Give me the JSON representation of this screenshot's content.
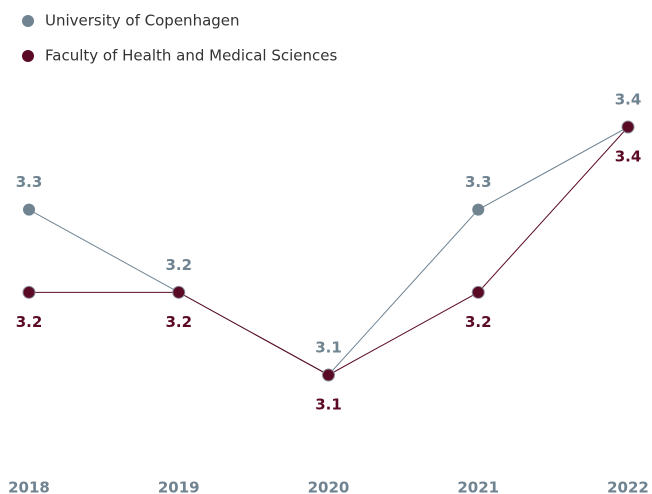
{
  "chart_data": {
    "type": "line",
    "categories": [
      "2018",
      "2019",
      "2020",
      "2021",
      "2022"
    ],
    "series": [
      {
        "name": "University of Copenhagen",
        "color": "#6f8391",
        "values": [
          3.3,
          3.2,
          3.1,
          3.3,
          3.4
        ]
      },
      {
        "name": "Faculty of Health and Medical Sciences",
        "color": "#5b0a26",
        "values": [
          3.2,
          3.2,
          3.1,
          3.2,
          3.4
        ]
      }
    ]
  }
}
